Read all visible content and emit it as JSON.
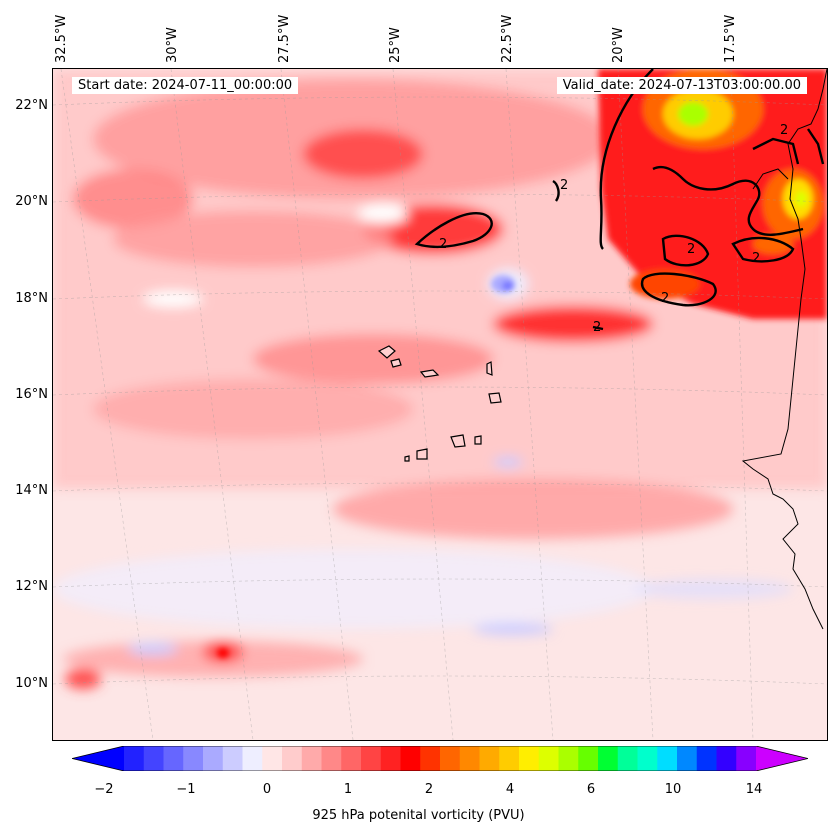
{
  "header": {
    "start_date": "Start date: 2024-07-11_00:00:00",
    "valid_date": "Valid_date: 2024-07-13T03:00:00.00"
  },
  "axes": {
    "lon_labels": [
      "32.5°W",
      "30°W",
      "27.5°W",
      "25°W",
      "22.5°W",
      "20°W",
      "17.5°W"
    ],
    "lat_labels": [
      "22°N",
      "20°N",
      "18°N",
      "16°N",
      "14°N",
      "12°N",
      "10°N"
    ]
  },
  "contour_labels": [
    "2",
    "2",
    "2",
    "2",
    "2",
    "2",
    "2"
  ],
  "colorbar": {
    "title": "925 hPa potenital vorticity (PVU)",
    "tick_labels": [
      "−2",
      "−1",
      "0",
      "1",
      "2",
      "4",
      "6",
      "10",
      "14"
    ],
    "colors": [
      "#0000ff",
      "#2222ff",
      "#4444ff",
      "#6666ff",
      "#8888ff",
      "#aaaaff",
      "#ccccff",
      "#eeeeff",
      "#ffe6e6",
      "#ffcccc",
      "#ffaaaa",
      "#ff8888",
      "#ff6666",
      "#ff4444",
      "#ff2222",
      "#ff0000",
      "#ff3300",
      "#ff6600",
      "#ff8800",
      "#ffaa00",
      "#ffcc00",
      "#ffee00",
      "#ddff00",
      "#aaff00",
      "#66ff00",
      "#00ff33",
      "#00ff99",
      "#00ffcc",
      "#00ddff",
      "#0088ff",
      "#0033ff",
      "#3300ff",
      "#8800ff",
      "#cc00ff"
    ]
  }
}
